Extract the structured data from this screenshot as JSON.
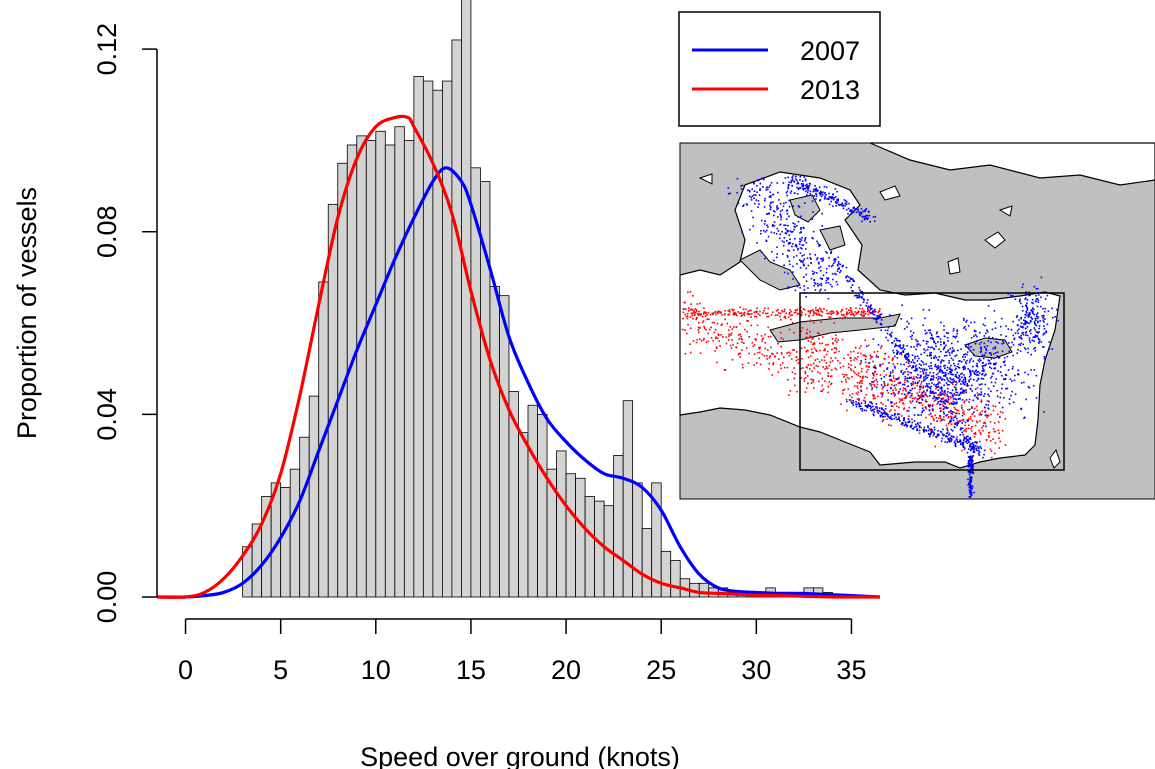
{
  "chart_data": {
    "type": "bar",
    "xlabel": "Speed over ground (knots)",
    "ylabel": "Proportion of vessels",
    "xlim": [
      -1.5,
      36.5
    ],
    "ylim": [
      0,
      0.129
    ],
    "x_ticks": [
      0,
      5,
      10,
      15,
      20,
      25,
      30,
      35
    ],
    "y_ticks": [
      0.0,
      0.04,
      0.08,
      0.12
    ],
    "y_tick_labels": [
      "0.00",
      "0.04",
      "0.08",
      "0.12"
    ],
    "bin_width": 0.5,
    "histogram": {
      "bin_starts": [
        3.0,
        3.5,
        4.0,
        4.5,
        5.0,
        5.5,
        6.0,
        6.5,
        7.0,
        7.5,
        8.0,
        8.5,
        9.0,
        9.5,
        10.0,
        10.5,
        11.0,
        11.5,
        12.0,
        12.5,
        13.0,
        13.5,
        14.0,
        14.5,
        15.0,
        15.5,
        16.0,
        16.5,
        17.0,
        17.5,
        18.0,
        18.5,
        19.0,
        19.5,
        20.0,
        20.5,
        21.0,
        21.5,
        22.0,
        22.5,
        23.0,
        23.5,
        24.0,
        24.5,
        25.0,
        25.5,
        26.0,
        26.5,
        27.0,
        27.5,
        28.0,
        28.5,
        29.0,
        29.5,
        30.0,
        30.5,
        31.0,
        31.5,
        32.0,
        32.5,
        33.0,
        33.5
      ],
      "values": [
        0.011,
        0.016,
        0.022,
        0.025,
        0.024,
        0.028,
        0.035,
        0.044,
        0.069,
        0.086,
        0.095,
        0.099,
        0.101,
        0.1,
        0.102,
        0.099,
        0.103,
        0.1,
        0.114,
        0.113,
        0.111,
        0.113,
        0.122,
        0.131,
        0.094,
        0.091,
        0.068,
        0.066,
        0.045,
        0.036,
        0.042,
        0.04,
        0.028,
        0.032,
        0.027,
        0.026,
        0.022,
        0.021,
        0.02,
        0.031,
        0.043,
        0.025,
        0.015,
        0.025,
        0.01,
        0.008,
        0.004,
        0.003,
        0.003,
        0.002,
        0.002,
        0.001,
        0.001,
        0.001,
        0.001,
        0.002,
        0.001,
        0.001,
        0.001,
        0.002,
        0.002,
        0.001
      ]
    },
    "series": [
      {
        "name": "2007",
        "color": "#0000ff",
        "type": "line",
        "x": [
          -1.5,
          0,
          1,
          2,
          3,
          4,
          5,
          6,
          7,
          8,
          9,
          10,
          11,
          12,
          13,
          13.7,
          14.5,
          15,
          16,
          17,
          18,
          19,
          20,
          21,
          22,
          23,
          24,
          25,
          26,
          27,
          28,
          29,
          30,
          31,
          32,
          33,
          34,
          35,
          36.5
        ],
        "y": [
          0.0,
          0.0,
          0.0003,
          0.001,
          0.003,
          0.007,
          0.013,
          0.021,
          0.032,
          0.043,
          0.054,
          0.064,
          0.074,
          0.083,
          0.091,
          0.094,
          0.091,
          0.086,
          0.072,
          0.057,
          0.047,
          0.039,
          0.034,
          0.03,
          0.027,
          0.026,
          0.024,
          0.019,
          0.011,
          0.005,
          0.002,
          0.0012,
          0.001,
          0.0008,
          0.0008,
          0.0007,
          0.0005,
          0.0003,
          0.0
        ]
      },
      {
        "name": "2013",
        "color": "#ff0000",
        "type": "line",
        "x": [
          -1.5,
          0,
          1,
          2,
          3,
          4,
          5,
          6,
          7,
          8,
          9,
          10,
          11,
          11.7,
          12,
          13,
          14,
          15,
          16,
          17,
          18,
          19,
          20,
          21,
          22,
          23,
          24,
          25,
          26,
          27,
          28,
          29,
          30,
          31,
          32,
          33,
          34,
          35,
          36.5
        ],
        "y": [
          0.0,
          0.0,
          0.001,
          0.004,
          0.009,
          0.016,
          0.027,
          0.044,
          0.064,
          0.083,
          0.096,
          0.103,
          0.105,
          0.105,
          0.103,
          0.095,
          0.084,
          0.067,
          0.052,
          0.041,
          0.033,
          0.026,
          0.02,
          0.015,
          0.011,
          0.008,
          0.005,
          0.003,
          0.002,
          0.001,
          0.0008,
          0.0006,
          0.0004,
          0.0003,
          0.0002,
          0.0001,
          0.0,
          0.0,
          0.0
        ]
      }
    ],
    "legend": {
      "placement": "top-right",
      "entries": [
        "2007",
        "2013"
      ]
    },
    "grid": false
  },
  "inset_map": {
    "land_color": "#c0c0c0",
    "sea_color": "#ffffff",
    "point_series": [
      {
        "name": "2007",
        "color": "#0000ff"
      },
      {
        "name": "2013",
        "color": "#ff0000"
      }
    ]
  }
}
